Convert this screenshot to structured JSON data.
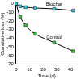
{
  "chart_data": {
    "type": "line",
    "x_label": "Time (d)",
    "y_label": "Cumulative loss (%)",
    "xlim": [
      0,
      45
    ],
    "xticks": [
      0,
      10,
      20,
      30,
      40
    ],
    "ylim": [
      -70,
      0
    ],
    "yticks": [
      -70,
      -60,
      -50,
      -40,
      -30,
      -20,
      -10,
      0
    ],
    "grid": false,
    "series": [
      {
        "name": "Biochar",
        "color": "#33ccee",
        "marker": "square",
        "x": [
          0,
          3,
          7,
          14,
          28,
          42
        ],
        "values": [
          0,
          -3,
          -4,
          -5,
          -6,
          -8
        ]
      },
      {
        "name": "Control",
        "color": "#33cc33",
        "marker": "square",
        "x": [
          0,
          3,
          7,
          14,
          28,
          42
        ],
        "values": [
          0,
          -15,
          -25,
          -35,
          -45,
          -55
        ]
      }
    ]
  }
}
